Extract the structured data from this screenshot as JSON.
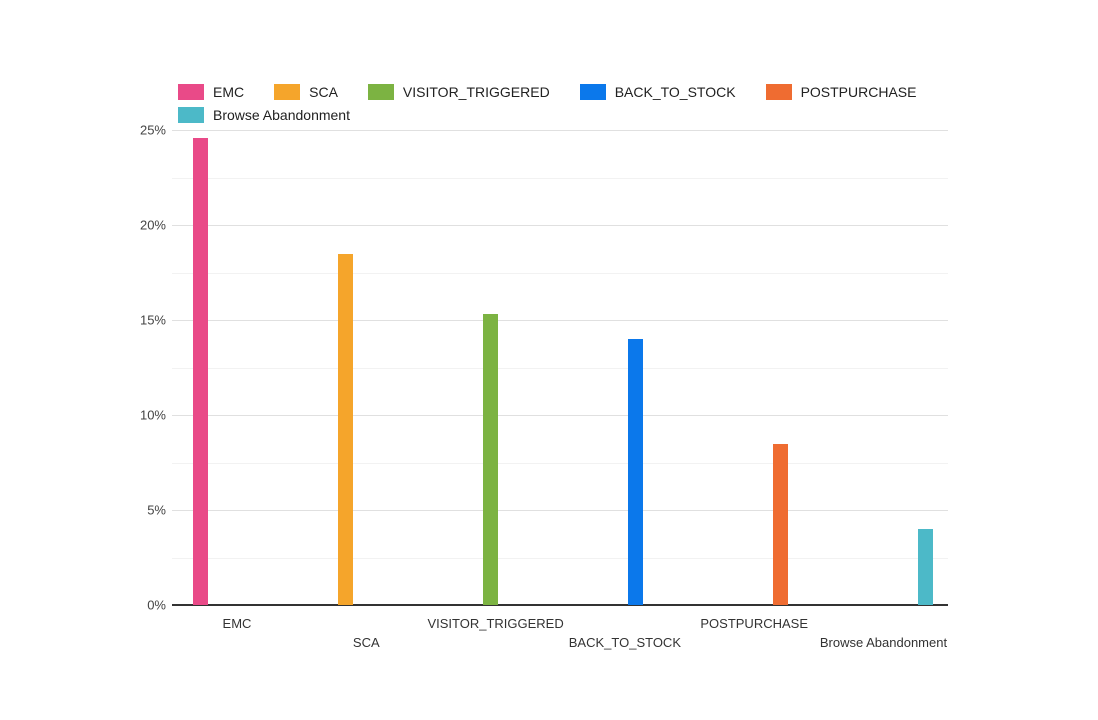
{
  "chart_data": {
    "type": "bar",
    "title": "",
    "categories": [
      "EMC",
      "SCA",
      "VISITOR_TRIGGERED",
      "BACK_TO_STOCK",
      "POSTPURCHASE",
      "Browse Abandonment"
    ],
    "series": [
      {
        "name": "EMC",
        "value": 24.6,
        "color": "#E94A88"
      },
      {
        "name": "SCA",
        "value": 18.5,
        "color": "#F5A52B"
      },
      {
        "name": "VISITOR_TRIGGERED",
        "value": 15.3,
        "color": "#7CB342"
      },
      {
        "name": "BACK_TO_STOCK",
        "value": 14.0,
        "color": "#0B78EB"
      },
      {
        "name": "POSTPURCHASE",
        "value": 8.5,
        "color": "#EF6C31"
      },
      {
        "name": "Browse Abandonment",
        "value": 4.0,
        "color": "#4CB9C8"
      }
    ],
    "xlabel": "",
    "ylabel": "",
    "ylim": [
      0,
      25
    ],
    "ytick_major_step": 5,
    "ytick_minor_step": 2.5,
    "ytick_labels": [
      "0%",
      "5%",
      "10%",
      "15%",
      "20%",
      "25%"
    ],
    "grid": true,
    "legend_position": "top"
  },
  "styles": {
    "background_color": "#ffffff",
    "grid_major_color": "#e0e0e0",
    "grid_minor_color": "#f2f2f2",
    "axis_line_color": "#333333",
    "tick_label_color": "#444444",
    "category_label_color": "#333333",
    "legend_label_color": "#212121"
  }
}
